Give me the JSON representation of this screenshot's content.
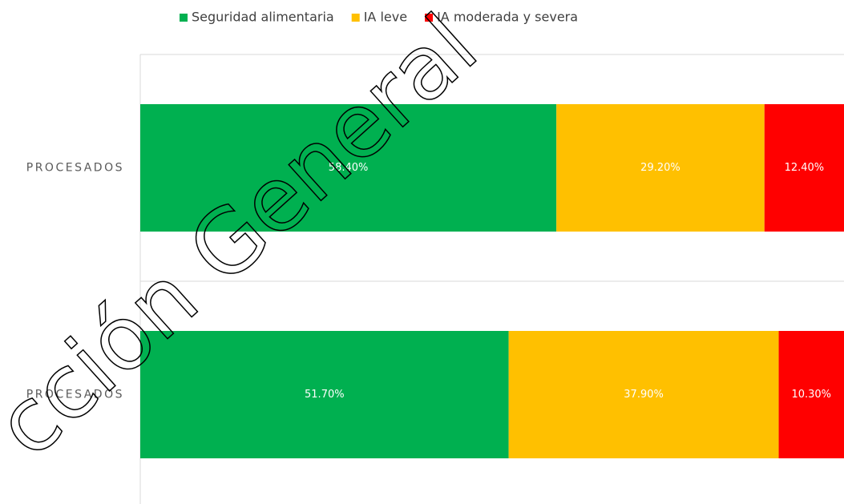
{
  "chart_data": {
    "type": "stacked-bar-horizontal",
    "categories": [
      "PROCESADOS",
      "PROCESADOS"
    ],
    "series": [
      {
        "name": "Seguridad alimentaria",
        "color": "#00b050",
        "values": [
          58.4,
          51.7
        ],
        "value_labels": [
          "58.40%",
          "51.70%"
        ]
      },
      {
        "name": "IA leve",
        "color": "#ffc000",
        "values": [
          29.2,
          37.9
        ],
        "value_labels": [
          "29.20%",
          "37.90%"
        ]
      },
      {
        "name": "IA moderada y severa",
        "color": "#ff0000",
        "values": [
          12.4,
          10.3
        ],
        "value_labels": [
          "12.40%",
          "10.30%"
        ]
      }
    ],
    "xlim": [
      0,
      100
    ],
    "legend": "top",
    "watermark": "cción General"
  }
}
